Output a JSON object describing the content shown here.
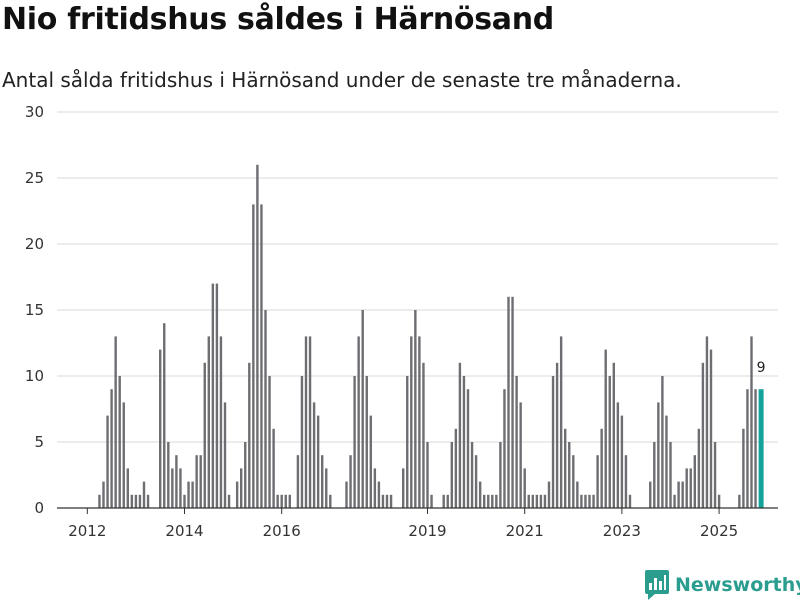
{
  "header": {
    "title": "Nio fritidshus såldes i Härnösand",
    "subtitle": "Antal sålda fritidshus i Härnösand under de senaste tre månaderna."
  },
  "brand": {
    "name": "Newsworthy",
    "color": "#2a9d8f"
  },
  "colors": {
    "bar": "#6e6d72",
    "highlight": "#13a39a",
    "grid": "#d9d9d9",
    "axis": "#333333"
  },
  "chart_data": {
    "type": "bar",
    "title": "Nio fritidshus såldes i Härnösand",
    "subtitle": "Antal sålda fritidshus i Härnösand under de senaste tre månaderna.",
    "xlabel": "",
    "ylabel": "",
    "ylim": [
      0,
      30
    ],
    "yticks": [
      0,
      5,
      10,
      15,
      20,
      25,
      30
    ],
    "xtick_labels": [
      "2012",
      "2014",
      "2016",
      "2019",
      "2021",
      "2023",
      "2025"
    ],
    "xtick_indices": [
      6,
      30,
      54,
      90,
      114,
      138,
      162
    ],
    "grid": true,
    "start_month": "2011-06",
    "values": [
      0,
      0,
      0,
      0,
      0,
      0,
      0,
      0,
      0,
      1,
      2,
      7,
      9,
      13,
      10,
      8,
      3,
      1,
      1,
      1,
      2,
      1,
      0,
      0,
      12,
      14,
      5,
      3,
      4,
      3,
      1,
      2,
      2,
      4,
      4,
      11,
      13,
      17,
      17,
      13,
      8,
      1,
      0,
      2,
      3,
      5,
      11,
      23,
      26,
      23,
      15,
      10,
      6,
      1,
      1,
      1,
      1,
      0,
      4,
      10,
      13,
      13,
      8,
      7,
      4,
      3,
      1,
      0,
      0,
      0,
      2,
      4,
      10,
      13,
      15,
      10,
      7,
      3,
      2,
      1,
      1,
      1,
      0,
      0,
      3,
      10,
      13,
      15,
      13,
      11,
      5,
      1,
      0,
      0,
      1,
      1,
      5,
      6,
      11,
      10,
      9,
      5,
      4,
      2,
      1,
      1,
      1,
      1,
      5,
      9,
      16,
      16,
      10,
      8,
      3,
      1,
      1,
      1,
      1,
      1,
      2,
      10,
      11,
      13,
      6,
      5,
      4,
      2,
      1,
      1,
      1,
      1,
      4,
      6,
      12,
      10,
      11,
      8,
      7,
      4,
      1,
      0,
      0,
      0,
      0,
      2,
      5,
      8,
      10,
      7,
      5,
      1,
      2,
      2,
      3,
      3,
      4,
      6,
      11,
      13,
      12,
      5,
      1,
      0,
      0,
      0,
      0,
      1,
      6,
      9,
      13,
      9,
      9
    ],
    "highlight_index": 172,
    "annotations": [
      {
        "index": 172,
        "label": "9"
      }
    ]
  }
}
